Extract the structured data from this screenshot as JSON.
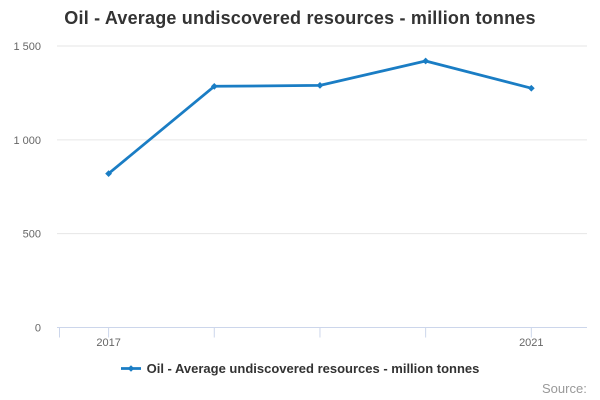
{
  "chart_data": {
    "type": "line",
    "title": "Oil - Average undiscovered resources - million tonnes",
    "x": [
      2017,
      2018,
      2019,
      2020,
      2021
    ],
    "xtick_labels": [
      "2017",
      "",
      "",
      "",
      "2021"
    ],
    "series": [
      {
        "name": "Oil - Average undiscovered resources - million tonnes",
        "values": [
          820,
          1285,
          1290,
          1420,
          1275
        ]
      }
    ],
    "ylim": [
      0,
      1500
    ],
    "yticks": [
      0,
      500,
      1000,
      1500
    ],
    "ytick_labels": [
      "0",
      "500",
      "1 000",
      "1 500"
    ],
    "xlabel": "",
    "ylabel": "",
    "grid": "horizontal",
    "marker": "diamond",
    "legend_position": "bottom-center"
  },
  "legend": {
    "label": "Oil - Average undiscovered resources - million tonnes"
  },
  "footer": {
    "source_label": "Source:"
  },
  "colors": {
    "series": "#1a7dc4",
    "title_text": "#333333",
    "legend_text": "#333333",
    "axis_label_text": "#666666",
    "gridline": "#e6e6e6",
    "axis_line": "#ccd6eb",
    "source_text": "#999999",
    "background": "#ffffff"
  }
}
